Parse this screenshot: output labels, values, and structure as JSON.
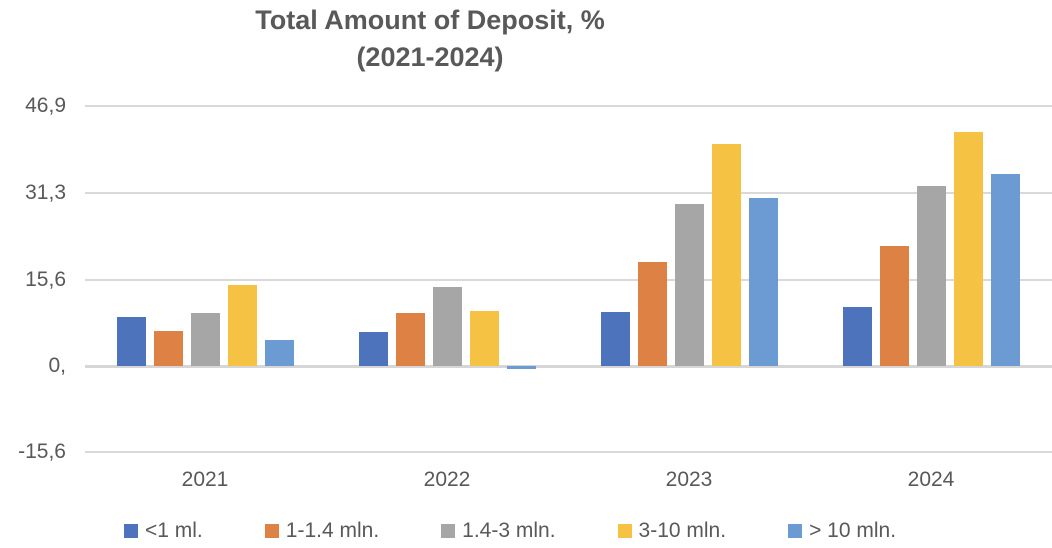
{
  "chart_data": {
    "type": "bar",
    "title": "Total Amount of Deposit, %",
    "subtitle": "(2021-2024)",
    "categories": [
      "2021",
      "2022",
      "2023",
      "2024"
    ],
    "series": [
      {
        "name": "<1 ml.",
        "color": "#4E73BD",
        "values": [
          8.9,
          6.2,
          9.7,
          10.6
        ]
      },
      {
        "name": "1-1.4 mln.",
        "color": "#DD8145",
        "values": [
          6.4,
          9.5,
          18.8,
          21.7
        ]
      },
      {
        "name": "1.4-3 mln.",
        "color": "#A6A6A6",
        "values": [
          9.5,
          14.3,
          29.2,
          32.5
        ]
      },
      {
        "name": "3-10 mln.",
        "color": "#F5C243",
        "values": [
          14.6,
          10.0,
          40.1,
          42.2
        ]
      },
      {
        "name": "> 10 mln.",
        "color": "#6C9BD3",
        "values": [
          4.7,
          -0.5,
          30.3,
          34.6
        ]
      }
    ],
    "y_axis": {
      "ticks": [
        {
          "value": 46.9,
          "label": "46,9"
        },
        {
          "value": 31.3,
          "label": "31,3"
        },
        {
          "value": 15.6,
          "label": "15,6"
        },
        {
          "value": 0,
          "label": "0,"
        },
        {
          "value": -15.6,
          "label": "-15,6"
        }
      ],
      "range": [
        -15.6,
        46.9
      ],
      "decimal_separator": ","
    },
    "grid": true,
    "legend_position": "bottom"
  },
  "colors": {
    "title_text": "#595959",
    "axis_text": "#595959",
    "gridline": "#D9D9D9"
  }
}
